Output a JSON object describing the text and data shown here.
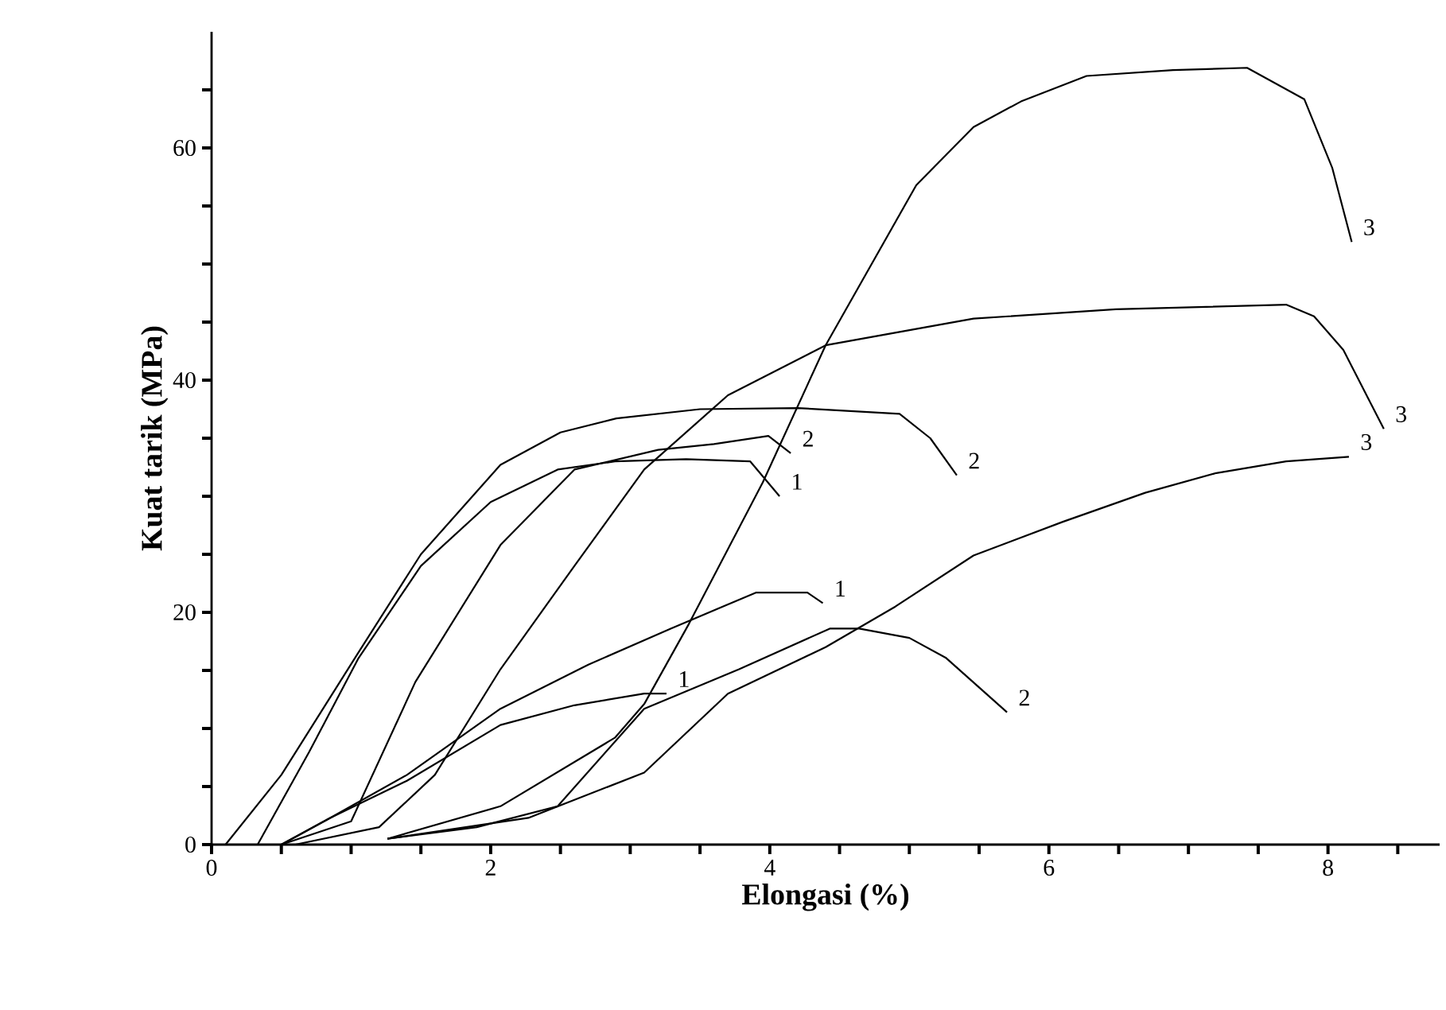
{
  "chart_data": {
    "type": "line",
    "xlabel": "Elongasi (%)",
    "ylabel": "Kuat tarik (MPa)",
    "xlim": [
      0,
      8.8
    ],
    "ylim": [
      0,
      70
    ],
    "xticks": [
      0,
      {
        "value": 0.5,
        "label": null
      },
      2,
      {
        "value": 1,
        "label": null
      },
      {
        "value": 1.5,
        "label": null
      },
      {
        "value": 2.5,
        "label": null
      },
      {
        "value": 3,
        "label": null
      },
      {
        "value": 3.5,
        "label": null
      },
      4,
      {
        "value": 4.5,
        "label": null
      },
      {
        "value": 5,
        "label": null
      },
      {
        "value": 5.5,
        "label": null
      },
      6,
      {
        "value": 6.5,
        "label": null
      },
      {
        "value": 7,
        "label": null
      },
      {
        "value": 7.5,
        "label": null
      },
      8,
      {
        "value": 8.5,
        "label": null
      }
    ],
    "yticks": [
      0,
      {
        "value": 5,
        "label": null
      },
      {
        "value": 10,
        "label": null
      },
      {
        "value": 15,
        "label": null
      },
      20,
      {
        "value": 25,
        "label": null
      },
      {
        "value": 30,
        "label": null
      },
      {
        "value": 35,
        "label": null
      },
      40,
      {
        "value": 45,
        "label": null
      },
      {
        "value": 50,
        "label": null
      },
      {
        "value": 55,
        "label": null
      },
      60,
      {
        "value": 65,
        "label": null
      }
    ],
    "grid": false,
    "legend": false,
    "line_style": "solid",
    "series": [
      {
        "name": "2",
        "color": "#000000",
        "x": [
          0.1,
          0.5,
          1.05,
          1.5,
          2.07,
          2.5,
          2.9,
          3.5,
          4.2,
          4.93,
          5.15,
          5.34
        ],
        "values": [
          0,
          6,
          16.5,
          25,
          32.7,
          35.5,
          36.7,
          37.5,
          37.6,
          37.1,
          35,
          31.8
        ]
      },
      {
        "name": "1",
        "color": "#000000",
        "x": [
          0.33,
          0.7,
          1.05,
          1.5,
          2.0,
          2.48,
          2.89,
          3.4,
          3.86,
          4.07
        ],
        "values": [
          0,
          8,
          16,
          24,
          29.5,
          32.3,
          33,
          33.2,
          33,
          30
        ]
      },
      {
        "name": "2",
        "color": "#000000",
        "x": [
          0.5,
          1.0,
          1.46,
          2.07,
          2.6,
          3.2,
          3.6,
          3.99,
          4.15
        ],
        "values": [
          0,
          2,
          14,
          25.8,
          32.3,
          34,
          34.5,
          35.2,
          33.7
        ]
      },
      {
        "name": "3",
        "color": "#000000",
        "x": [
          0.6,
          1.2,
          1.6,
          2.07,
          2.6,
          3.1,
          3.7,
          4.4,
          5.46,
          6.48,
          7.7,
          7.9,
          8.11,
          8.4
        ],
        "values": [
          0,
          1.5,
          6,
          15.1,
          24,
          32.3,
          38.7,
          43,
          45.3,
          46.1,
          46.5,
          45.5,
          42.6,
          35.8
        ]
      },
      {
        "name": "3",
        "color": "#000000",
        "x": [
          1.26,
          2.07,
          2.89,
          3.1,
          3.42,
          3.95,
          4.4,
          5.05,
          5.46,
          5.8,
          6.27,
          6.89,
          7.42,
          7.83,
          8.03,
          8.17
        ],
        "values": [
          0.5,
          3.3,
          9.2,
          12.1,
          19,
          31.2,
          43,
          56.8,
          61.8,
          64,
          66.2,
          66.7,
          66.9,
          64.2,
          58.3,
          51.9
        ]
      },
      {
        "name": "1",
        "color": "#000000",
        "x": [
          0.5,
          0.85,
          1.4,
          2.07,
          2.7,
          3.29,
          3.9,
          4.27,
          4.38
        ],
        "values": [
          0,
          2.3,
          6,
          11.7,
          15.5,
          18.6,
          21.7,
          21.7,
          20.8
        ]
      },
      {
        "name": "1",
        "color": "#000000",
        "x": [
          0.5,
          0.85,
          1.4,
          2.07,
          2.6,
          3.1,
          3.26
        ],
        "values": [
          0,
          2.3,
          5.5,
          10.3,
          12,
          13,
          13
        ]
      },
      {
        "name": "2",
        "color": "#000000",
        "x": [
          1.26,
          1.9,
          2.48,
          3.1,
          3.78,
          4.43,
          4.64,
          5.0,
          5.26,
          5.7
        ],
        "values": [
          0.5,
          1.5,
          3.3,
          11.7,
          15.1,
          18.6,
          18.6,
          17.8,
          16.1,
          11.4
        ]
      },
      {
        "name": "3",
        "color": "#000000",
        "x": [
          1.26,
          2.27,
          3.1,
          3.7,
          4.4,
          4.9,
          5.46,
          6.1,
          6.69,
          7.2,
          7.7,
          8.15
        ],
        "values": [
          0.5,
          2.3,
          6.2,
          13,
          17,
          20.5,
          24.9,
          27.8,
          30.3,
          32,
          33,
          33.4
        ]
      }
    ]
  }
}
